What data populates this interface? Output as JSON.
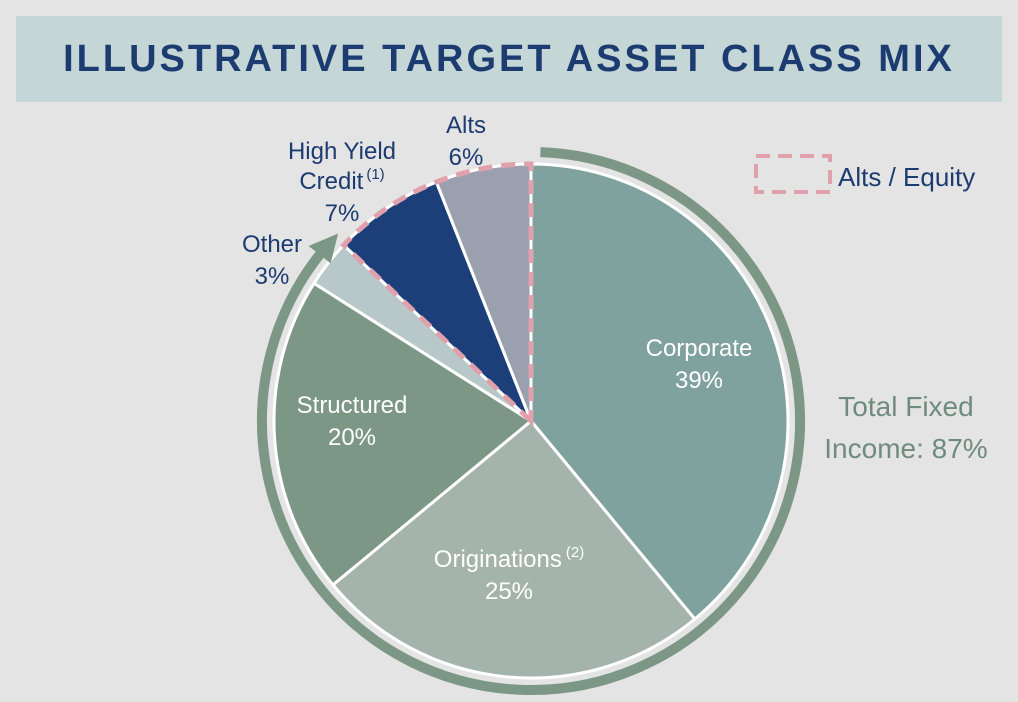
{
  "title": "ILLUSTRATIVE TARGET ASSET CLASS MIX",
  "chart_data": {
    "type": "pie",
    "title": "ILLUSTRATIVE TARGET ASSET CLASS MIX",
    "slices": [
      {
        "name": "Corporate",
        "label_pct": "39%",
        "value": 39,
        "color": "#7fa29e"
      },
      {
        "name": "Originations",
        "sup": "(2)",
        "label_pct": "25%",
        "value": 25,
        "color": "#a4b3ab"
      },
      {
        "name": "Structured",
        "label_pct": "20%",
        "value": 20,
        "color": "#7d9786"
      },
      {
        "name": "Other",
        "label_pct": "3%",
        "value": 3,
        "color": "#b8c7c7"
      },
      {
        "name_line1": "High Yield",
        "name_line2": "Credit",
        "sup": "(1)",
        "label_pct": "7%",
        "value": 7,
        "color": "#1c3f7a"
      },
      {
        "name": "Alts",
        "label_pct": "6%",
        "value": 6,
        "color": "#9aa0ae"
      }
    ],
    "legend": {
      "label": "Alts / Equity",
      "style": "dashed",
      "color": "#e0a1ad",
      "position": "top-right"
    },
    "annotation": {
      "line1": "Total Fixed",
      "line2": "Income: 87%",
      "color": "#6f8b7e"
    },
    "arrow_color": "#7d9786"
  }
}
